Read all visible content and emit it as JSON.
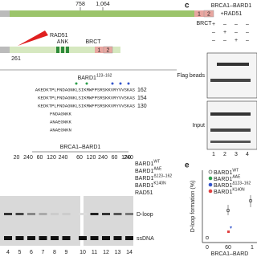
{
  "domain_diagram": {
    "top": {
      "start": "758",
      "end": "1,064",
      "brct": "BRCT",
      "box1": "1",
      "box2": "2"
    },
    "bottom": {
      "rad51": "RAD51",
      "ank": "ANK",
      "brct": "BRCT",
      "pos": "261",
      "box1": "1",
      "box2": "2"
    }
  },
  "sequence": {
    "title": {
      "base": "BARD1",
      "sup": "123–162"
    },
    "lines": [
      {
        "seq": "AKEDKTPLFNDAGNKLSIKMWFPSRSKKVRYVVSKAS",
        "end": "162"
      },
      {
        "seq": "KEDKTPLFNDAGNKLSIKMWFPSRSKKVRYVVSKAS",
        "end": "154"
      },
      {
        "seq": "KEDKTPLFNDAGNKLSIKMWFPSRSKKVRYVVSKAS",
        "end": "130"
      }
    ],
    "mutants": [
      "FNDAGNKK",
      "ANAEGNKK",
      "ANAEGNKN"
    ]
  },
  "gel": {
    "header": "BRCA1–BARD1",
    "amounts": [
      "20",
      "240",
      "60",
      "120",
      "240",
      "60",
      "120",
      "240",
      "60",
      "120",
      "240"
    ],
    "rows": [
      {
        "base": "BARD1",
        "sup": "WT"
      },
      {
        "base": "BARD1",
        "sup": "AAE"
      },
      {
        "base": "BARD1",
        "sup": "Δ123–162"
      },
      {
        "base": "BARD1",
        "sup": "K140N"
      },
      {
        "base": "RAD51",
        "sup": ""
      }
    ],
    "bands": [
      "D-loop",
      "ssDNA"
    ],
    "lanes": [
      "4",
      "5",
      "6",
      "7",
      "8",
      "9",
      "10",
      "11",
      "12",
      "13",
      "14"
    ]
  },
  "panel_c": {
    "letter": "c",
    "header": "BRCA1–BARD1",
    "sub": "+RAD51",
    "signs": [
      [
        "+",
        "–",
        "–",
        "–"
      ],
      [
        "–",
        "+",
        "–",
        "–"
      ],
      [
        "–",
        "–",
        "+",
        "–"
      ]
    ],
    "blots": [
      "Flag beads",
      "Input"
    ],
    "lanes": [
      "1",
      "2",
      "3",
      "4"
    ]
  },
  "panel_e": {
    "letter": "e",
    "y_label": "D-loop formation (%)",
    "legend": [
      {
        "base": "BARD1",
        "sup": "WT"
      },
      {
        "base": "BARD1",
        "sup": "AAE"
      },
      {
        "base": "BARD1",
        "sup": "Δ123–162"
      },
      {
        "base": "BARD1",
        "sup": "K140N"
      }
    ],
    "x_ticks": [
      "0",
      "60",
      "1"
    ],
    "x_label": "BRCA1–BARD"
  }
}
